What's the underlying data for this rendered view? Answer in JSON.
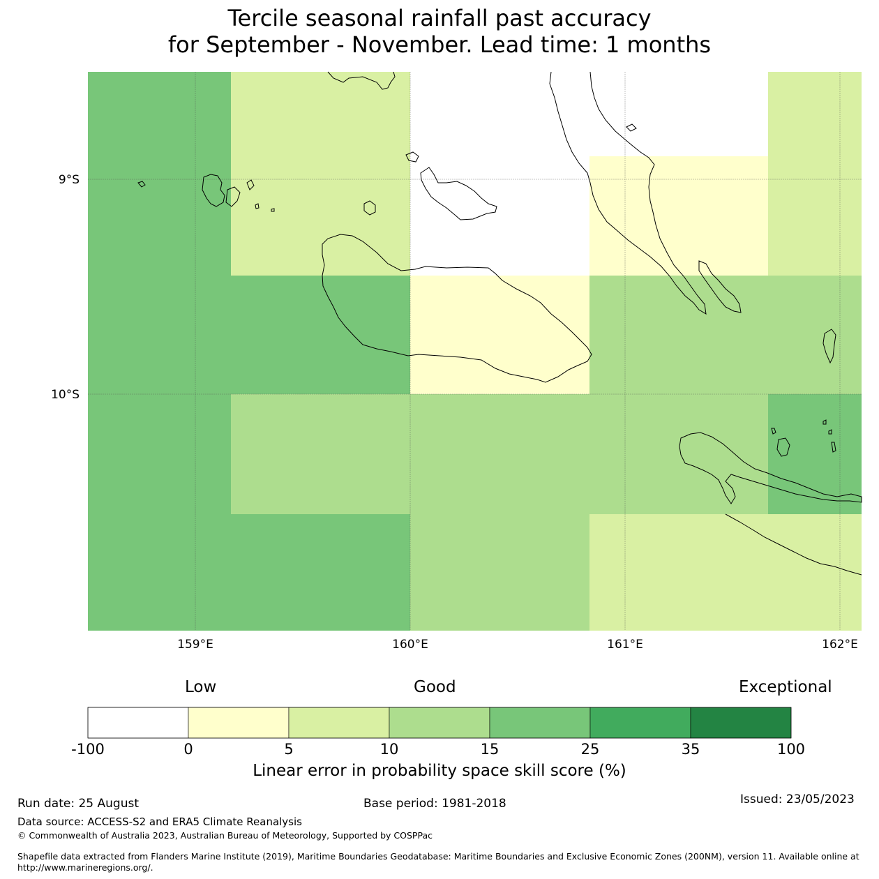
{
  "title": {
    "line1": "Tercile seasonal rainfall past accuracy",
    "line2": "for September - November. Lead time: 1 months"
  },
  "map": {
    "lat_labels": [
      "9°S",
      "10°S"
    ],
    "lon_labels": [
      "159°E",
      "160°E",
      "161°E",
      "162°E"
    ],
    "coastline_color": "#000000",
    "gridline_color": "#888888"
  },
  "colorbar": {
    "qualitative": {
      "low": "Low",
      "good": "Good",
      "exceptional": "Exceptional"
    },
    "ticks": [
      "-100",
      "0",
      "5",
      "10",
      "15",
      "25",
      "35",
      "100"
    ],
    "colors": [
      "#ffffff",
      "#ffffcc",
      "#d9f0a3",
      "#addd8e",
      "#78c679",
      "#41ab5d",
      "#238443"
    ],
    "label": "Linear error in probability space skill score (%)"
  },
  "footer": {
    "run_date": "Run date: 25 August",
    "base_period": "Base period: 1981-2018",
    "issued": "Issued: 23/05/2023",
    "data_source": "Data source: ACCESS-S2 and ERA5 Climate Reanalysis",
    "copyright": "© Commonwealth of Australia 2023, Australian Bureau of Meteorology, Supported by COSPPac",
    "shapefile_line1": "Shapefile data extracted from Flanders Marine Institute (2019), Maritime Boundaries Geodatabase: Maritime Boundaries and Exclusive Economic Zones (200NM), version 11. Available online at",
    "shapefile_line2": "http://www.marineregions.org/."
  },
  "grid_cells": {
    "note_units": "skill category colour per cell",
    "rows": [
      [
        "#78c679",
        "#d9f0a3",
        "#d9f0a3",
        "#ffffff",
        "#ffffff",
        "#ffffcc",
        "#d9f0a3"
      ],
      [
        "#78c679",
        "#78c679",
        "#78c679",
        "#ffffcc",
        "#addd8e",
        "#addd8e",
        "#addd8e"
      ],
      [
        "#78c679",
        "#addd8e",
        "#addd8e",
        "#addd8e",
        "#addd8e",
        "#addd8e",
        "#78c679"
      ],
      [
        "#78c679",
        "#78c679",
        "#78c679",
        "#addd8e",
        "#d9f0a3",
        "#d9f0a3",
        "#d9f0a3"
      ]
    ]
  }
}
